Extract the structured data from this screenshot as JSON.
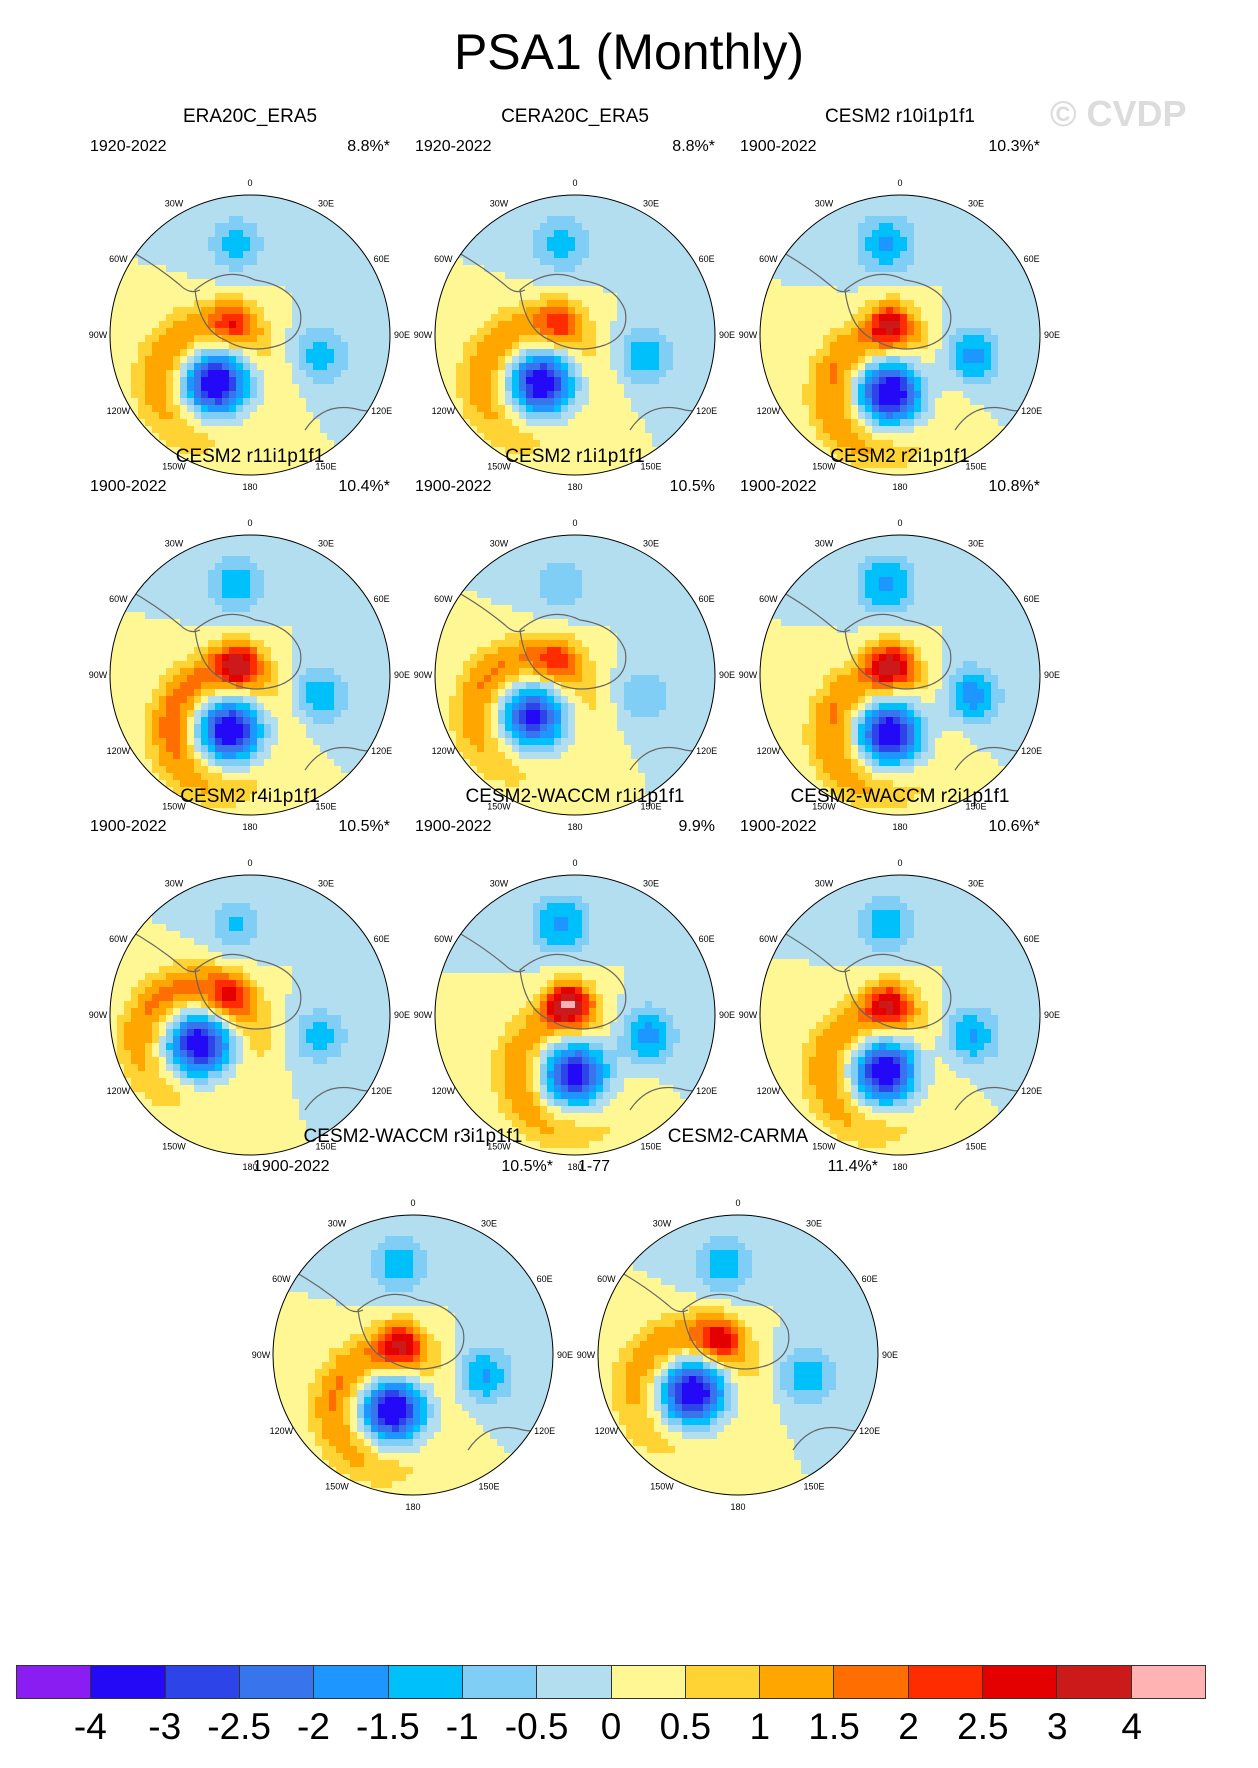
{
  "title": "PSA1 (Monthly)",
  "watermark": "© CVDP",
  "map_labels": {
    "top": "0",
    "bottom": "180",
    "left": "90W",
    "right": "90E",
    "upper_left_1": "60W",
    "upper_left_2": "30W",
    "upper_right_1": "30E",
    "upper_right_2": "60E",
    "lower_left_1": "120W",
    "lower_left_2": "150W",
    "lower_right_1": "120E",
    "lower_right_2": "150E"
  },
  "panels": [
    {
      "title": "ERA20C_ERA5",
      "years": "1920-2022",
      "pct": "8.8%*",
      "pattern": {
        "neg_center_angle_deg": 215,
        "neg_strength": -3.8,
        "pos_ring_strength": 1.5,
        "north_pos_strength": 1.5,
        "east_neg_strength": -1.3
      }
    },
    {
      "title": "CERA20C_ERA5",
      "years": "1920-2022",
      "pct": "8.8%*",
      "pattern": {
        "neg_center_angle_deg": 215,
        "neg_strength": -3.6,
        "pos_ring_strength": 1.5,
        "north_pos_strength": 1.4,
        "east_neg_strength": -1.4
      }
    },
    {
      "title": "CESM2 r10i1p1f1",
      "years": "1900-2022",
      "pct": "10.3%*",
      "pattern": {
        "neg_center_angle_deg": 190,
        "neg_strength": -3.8,
        "pos_ring_strength": 1.6,
        "north_pos_strength": 2.4,
        "east_neg_strength": -1.8
      }
    },
    {
      "title": "CESM2 r11i1p1f1",
      "years": "1900-2022",
      "pct": "10.4%*",
      "pattern": {
        "neg_center_angle_deg": 200,
        "neg_strength": -3.6,
        "pos_ring_strength": 1.8,
        "north_pos_strength": 2.6,
        "east_neg_strength": -1.5
      }
    },
    {
      "title": "CESM2 r1i1p1f1",
      "years": "1900-2022",
      "pct": "10.5%",
      "pattern": {
        "neg_center_angle_deg": 225,
        "neg_strength": -3.2,
        "pos_ring_strength": 1.6,
        "north_pos_strength": 1.3,
        "east_neg_strength": -1.0
      }
    },
    {
      "title": "CESM2 r2i1p1f1",
      "years": "1900-2022",
      "pct": "10.8%*",
      "pattern": {
        "neg_center_angle_deg": 190,
        "neg_strength": -3.7,
        "pos_ring_strength": 1.6,
        "north_pos_strength": 2.6,
        "east_neg_strength": -1.9
      }
    },
    {
      "title": "CESM2 r4i1p1f1",
      "years": "1900-2022",
      "pct": "10.5%*",
      "pattern": {
        "neg_center_angle_deg": 240,
        "neg_strength": -3.6,
        "pos_ring_strength": 1.7,
        "north_pos_strength": 1.4,
        "east_neg_strength": -1.2
      }
    },
    {
      "title": "CESM2-WACCM r1i1p1f1",
      "years": "1900-2022",
      "pct": "9.9%",
      "pattern": {
        "neg_center_angle_deg": 180,
        "neg_strength": -3.4,
        "pos_ring_strength": 1.4,
        "north_pos_strength": 3.4,
        "east_neg_strength": -1.9
      }
    },
    {
      "title": "CESM2-WACCM r2i1p1f1",
      "years": "1900-2022",
      "pct": "10.6%*",
      "pattern": {
        "neg_center_angle_deg": 195,
        "neg_strength": -3.6,
        "pos_ring_strength": 1.5,
        "north_pos_strength": 2.4,
        "east_neg_strength": -1.6
      }
    },
    {
      "title": "CESM2-WACCM r3i1p1f1",
      "years": "1900-2022",
      "pct": "10.5%*",
      "pattern": {
        "neg_center_angle_deg": 200,
        "neg_strength": -3.8,
        "pos_ring_strength": 1.6,
        "north_pos_strength": 2.3,
        "east_neg_strength": -1.6
      }
    },
    {
      "title": "CESM2-CARMA",
      "years": "1-77",
      "pct": "11.4%*",
      "pattern": {
        "neg_center_angle_deg": 230,
        "neg_strength": -3.8,
        "pos_ring_strength": 1.4,
        "north_pos_strength": 2.0,
        "east_neg_strength": -1.5
      }
    }
  ],
  "colorbar": {
    "labels": [
      "-4",
      "-3",
      "-2.5",
      "-2",
      "-1.5",
      "-1",
      "-0.5",
      "0",
      "0.5",
      "1",
      "1.5",
      "2",
      "2.5",
      "3",
      "4"
    ],
    "levels": [
      -4,
      -3,
      -2.5,
      -2,
      -1.5,
      -1,
      -0.5,
      0,
      0.5,
      1,
      1.5,
      2,
      2.5,
      3,
      4
    ],
    "colors": [
      "#8a1ef2",
      "#2309f5",
      "#2d45e8",
      "#3874eb",
      "#1e96ff",
      "#00c0fb",
      "#80cdf5",
      "#b3def0",
      "#fff794",
      "#ffd333",
      "#ffa700",
      "#ff6e00",
      "#ff2c00",
      "#e50000",
      "#cc1a1a",
      "#ffb3b3"
    ]
  }
}
